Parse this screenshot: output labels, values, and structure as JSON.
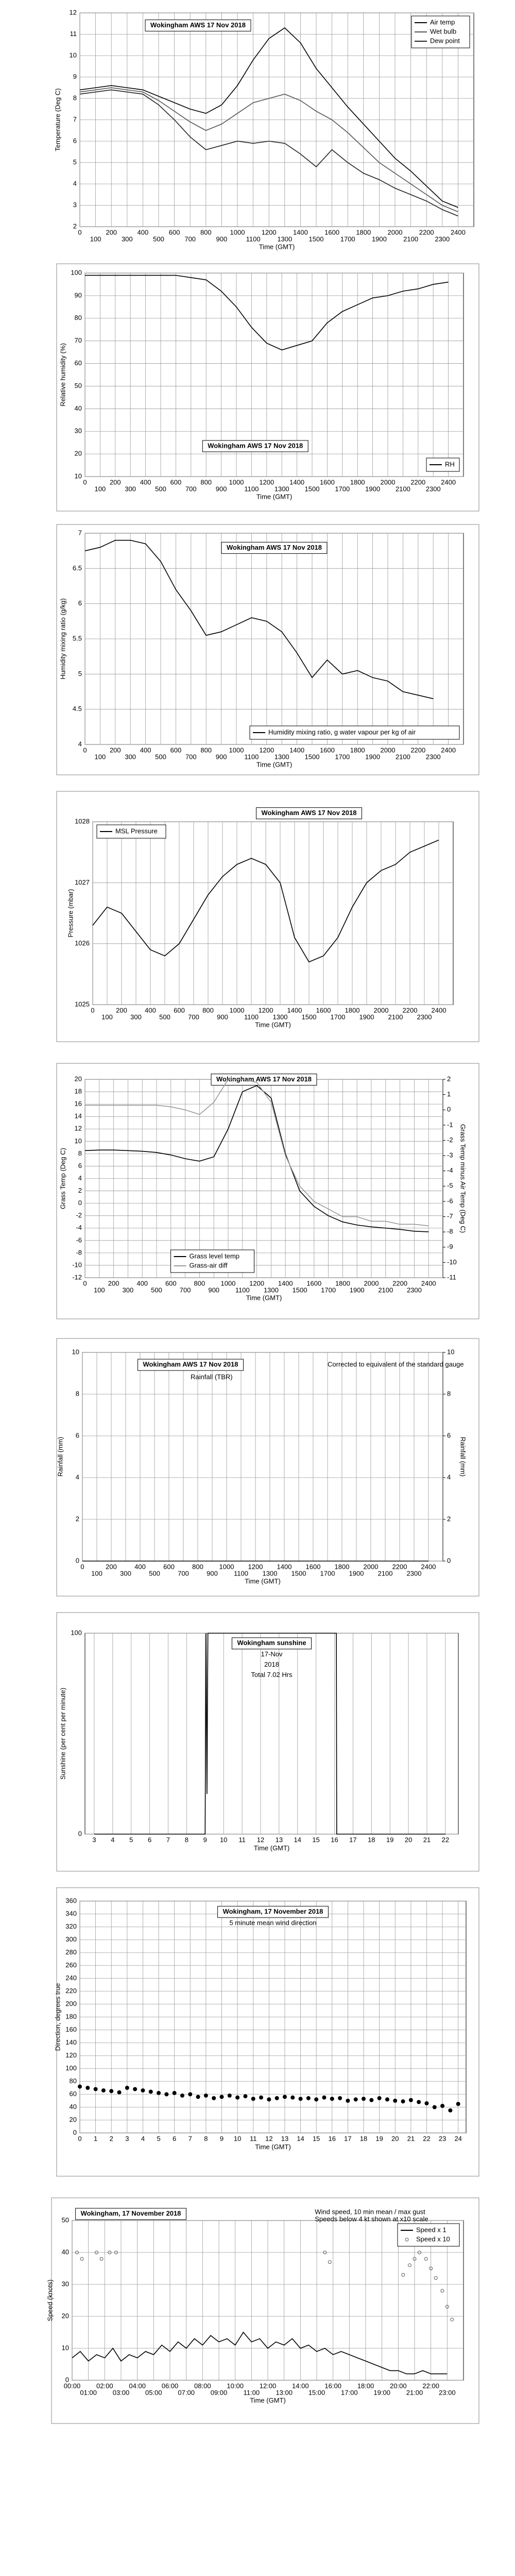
{
  "chart_data": [
    {
      "type": "line",
      "title": "Wokingham AWS 17 Nov 2018",
      "xlabel": "Time (GMT)",
      "ylabel": "Temperature (Deg C)",
      "x": [
        0,
        100,
        200,
        300,
        400,
        500,
        600,
        700,
        800,
        900,
        1000,
        1100,
        1200,
        1300,
        1400,
        1500,
        1600,
        1700,
        1800,
        1900,
        2000,
        2100,
        2200,
        2300,
        2400
      ],
      "xlim": [
        0,
        2500
      ],
      "xticks": [
        0,
        100,
        200,
        300,
        400,
        500,
        600,
        700,
        800,
        900,
        1000,
        1100,
        1200,
        1300,
        1400,
        1500,
        1600,
        1700,
        1800,
        1900,
        2000,
        2100,
        2200,
        2300,
        2400
      ],
      "ylim": [
        2,
        12
      ],
      "yticks": [
        2,
        3,
        4,
        5,
        6,
        7,
        8,
        9,
        10,
        11,
        12
      ],
      "grid": true,
      "legend": "upper right",
      "series": [
        {
          "name": "Air temp",
          "color": "#000000",
          "values": [
            8.4,
            8.5,
            8.6,
            8.5,
            8.4,
            8.1,
            7.8,
            7.5,
            7.3,
            7.7,
            8.6,
            9.8,
            10.8,
            11.3,
            10.6,
            9.4,
            8.5,
            7.6,
            6.8,
            6.0,
            5.2,
            4.6,
            3.9,
            3.2,
            2.9
          ]
        },
        {
          "name": "Wet bulb",
          "color": "#555555",
          "values": [
            8.3,
            8.4,
            8.5,
            8.4,
            8.3,
            7.9,
            7.4,
            6.9,
            6.5,
            6.8,
            7.3,
            7.8,
            8.0,
            8.2,
            7.9,
            7.4,
            7.0,
            6.4,
            5.7,
            5.0,
            4.5,
            4.0,
            3.5,
            3.0,
            2.7
          ]
        },
        {
          "name": "Dew point",
          "color": "#222222",
          "values": [
            8.2,
            8.3,
            8.4,
            8.3,
            8.2,
            7.7,
            7.0,
            6.2,
            5.6,
            5.8,
            6.0,
            5.9,
            6.0,
            5.9,
            5.4,
            4.8,
            5.6,
            5.0,
            4.5,
            4.2,
            3.8,
            3.5,
            3.2,
            2.8,
            2.5
          ]
        }
      ]
    },
    {
      "type": "line",
      "title": "Wokingham AWS 17 Nov 2018",
      "xlabel": "Time (GMT)",
      "ylabel": "Relative humidity (%)",
      "x": [
        0,
        100,
        200,
        300,
        400,
        500,
        600,
        700,
        800,
        900,
        1000,
        1100,
        1200,
        1300,
        1400,
        1500,
        1600,
        1700,
        1800,
        1900,
        2000,
        2100,
        2200,
        2300,
        2400
      ],
      "xlim": [
        0,
        2500
      ],
      "xticks": [
        0,
        100,
        200,
        300,
        400,
        500,
        600,
        700,
        800,
        900,
        1000,
        1100,
        1200,
        1300,
        1400,
        1500,
        1600,
        1700,
        1800,
        1900,
        2000,
        2100,
        2200,
        2300,
        2400
      ],
      "ylim": [
        10,
        100
      ],
      "yticks": [
        10,
        20,
        30,
        40,
        50,
        60,
        70,
        80,
        90,
        100
      ],
      "grid": true,
      "legend": "lower right",
      "series": [
        {
          "name": "RH",
          "color": "#000000",
          "values": [
            99,
            99,
            99,
            99,
            99,
            99,
            99,
            98,
            97,
            92,
            85,
            76,
            69,
            66,
            68,
            70,
            78,
            83,
            86,
            89,
            90,
            92,
            93,
            95,
            96
          ]
        }
      ]
    },
    {
      "type": "line",
      "title": "Wokingham AWS 17 Nov 2018",
      "xlabel": "Time (GMT)",
      "ylabel": "Humidity mixing ratio (g/kg)",
      "x": [
        0,
        100,
        200,
        300,
        400,
        500,
        600,
        700,
        800,
        900,
        1000,
        1100,
        1200,
        1300,
        1400,
        1500,
        1600,
        1700,
        1800,
        1900,
        2000,
        2100,
        2200,
        2300
      ],
      "xlim": [
        0,
        2500
      ],
      "xticks": [
        0,
        100,
        200,
        300,
        400,
        500,
        600,
        700,
        800,
        900,
        1000,
        1100,
        1200,
        1300,
        1400,
        1500,
        1600,
        1700,
        1800,
        1900,
        2000,
        2100,
        2200,
        2300,
        2400
      ],
      "ylim": [
        4,
        7
      ],
      "yticks": [
        4,
        4.5,
        5,
        5.5,
        6,
        6.5,
        7
      ],
      "grid": true,
      "legend": "lower right",
      "series": [
        {
          "name": "Humidity mixing ratio, g water vapour per kg of air",
          "color": "#000000",
          "values": [
            6.75,
            6.8,
            6.9,
            6.9,
            6.85,
            6.6,
            6.2,
            5.9,
            5.55,
            5.6,
            5.7,
            5.8,
            5.75,
            5.6,
            5.3,
            4.95,
            5.2,
            5.0,
            5.05,
            4.95,
            4.9,
            4.75,
            4.7,
            4.65
          ]
        }
      ]
    },
    {
      "type": "line",
      "title": "Wokingham AWS 17 Nov 2018",
      "xlabel": "Time (GMT)",
      "ylabel": "Pressure (mbar)",
      "x": [
        0,
        100,
        200,
        300,
        400,
        500,
        600,
        700,
        800,
        900,
        1000,
        1100,
        1200,
        1300,
        1400,
        1500,
        1600,
        1700,
        1800,
        1900,
        2000,
        2100,
        2200,
        2300,
        2400
      ],
      "xlim": [
        0,
        2500
      ],
      "xticks": [
        0,
        100,
        200,
        300,
        400,
        500,
        600,
        700,
        800,
        900,
        1000,
        1100,
        1200,
        1300,
        1400,
        1500,
        1600,
        1700,
        1800,
        1900,
        2000,
        2100,
        2200,
        2300,
        2400
      ],
      "ylim": [
        1025,
        1028
      ],
      "yticks": [
        1025,
        1026,
        1027,
        1028
      ],
      "grid": true,
      "legend": "upper left",
      "series": [
        {
          "name": "MSL Pressure",
          "color": "#000000",
          "values": [
            1026.3,
            1026.6,
            1026.5,
            1026.2,
            1025.9,
            1025.8,
            1026.0,
            1026.4,
            1026.8,
            1027.1,
            1027.3,
            1027.4,
            1027.3,
            1027.0,
            1026.1,
            1025.7,
            1025.8,
            1026.1,
            1026.6,
            1027.0,
            1027.2,
            1027.3,
            1027.5,
            1027.6,
            1027.7
          ]
        }
      ]
    },
    {
      "type": "line",
      "title": "Wokingham AWS 17 Nov 2018",
      "xlabel": "Time (GMT)",
      "ylabel": "Grass Temp (Deg C)",
      "y2label": "Grass Temp minus Air Temp (Deg C)",
      "x": [
        0,
        100,
        200,
        300,
        400,
        500,
        600,
        700,
        800,
        900,
        1000,
        1100,
        1200,
        1300,
        1400,
        1500,
        1600,
        1700,
        1800,
        1900,
        2000,
        2100,
        2200,
        2300,
        2400
      ],
      "xlim": [
        0,
        2500
      ],
      "xticks": [
        0,
        100,
        200,
        300,
        400,
        500,
        600,
        700,
        800,
        900,
        1000,
        1100,
        1200,
        1300,
        1400,
        1500,
        1600,
        1700,
        1800,
        1900,
        2000,
        2100,
        2200,
        2300,
        2400
      ],
      "ylim": [
        -12,
        20
      ],
      "yticks": [
        -12,
        -10,
        -8,
        -6,
        -4,
        -2,
        0,
        2,
        4,
        6,
        8,
        10,
        12,
        14,
        16,
        18,
        20
      ],
      "y2lim": [
        -11,
        2
      ],
      "y2ticks": [
        -11,
        -10,
        -9,
        -8,
        -7,
        -6,
        -5,
        -4,
        -3,
        -2,
        -1,
        0,
        1,
        2
      ],
      "grid": true,
      "legend": "lower center",
      "series": [
        {
          "name": "Grass level temp",
          "color": "#000000",
          "values": [
            8.5,
            8.6,
            8.6,
            8.5,
            8.4,
            8.2,
            7.8,
            7.2,
            6.8,
            7.5,
            12,
            18,
            19,
            17,
            8,
            2,
            -0.5,
            -2,
            -3,
            -3.5,
            -3.8,
            -4,
            -4.2,
            -4.5,
            -4.6
          ]
        },
        {
          "name": "Grass-air diff",
          "color": "#999999",
          "axis": "y2",
          "values": [
            0.3,
            0.3,
            0.3,
            0.3,
            0.3,
            0.3,
            0.2,
            0,
            -0.3,
            0.5,
            2,
            2,
            1.8,
            0.5,
            -3,
            -5,
            -6,
            -6.5,
            -7,
            -7,
            -7.3,
            -7.3,
            -7.5,
            -7.5,
            -7.6
          ]
        }
      ]
    },
    {
      "type": "line",
      "title": "Wokingham AWS 17 Nov 2018",
      "annotations": [
        "Rainfall (TBR)",
        "Corrected to equivalent of the standard gauge"
      ],
      "xlabel": "Time (GMT)",
      "ylabel": "Rainfall (mm)",
      "y2label": "Rainfall (mm)",
      "x": [
        0,
        2400
      ],
      "xlim": [
        0,
        2500
      ],
      "xticks": [
        0,
        100,
        200,
        300,
        400,
        500,
        600,
        700,
        800,
        900,
        1000,
        1100,
        1200,
        1300,
        1400,
        1500,
        1600,
        1700,
        1800,
        1900,
        2000,
        2100,
        2200,
        2300,
        2400
      ],
      "ylim": [
        0,
        10
      ],
      "yticks": [
        0,
        2,
        4,
        6,
        8,
        10
      ],
      "y2lim": [
        0,
        10
      ],
      "y2ticks": [
        0,
        2,
        4,
        6,
        8,
        10
      ],
      "grid": true,
      "series": [
        {
          "color": "#000000",
          "values": [
            0,
            0
          ]
        }
      ]
    },
    {
      "type": "line",
      "title": "Wokingham sunshine",
      "annotations": [
        "17-Nov",
        "2018",
        "Total 7.02 Hrs"
      ],
      "xlabel": "Time (GMT)",
      "ylabel": "Sunshine (per cent per minute)",
      "x": [
        3,
        9,
        9.05,
        9.1,
        9.15,
        9.2,
        16.1,
        16.12,
        22
      ],
      "xlim": [
        2.5,
        22.7
      ],
      "xticks": [
        3,
        4,
        5,
        6,
        7,
        8,
        9,
        10,
        11,
        12,
        13,
        14,
        15,
        16,
        17,
        18,
        19,
        20,
        21,
        22
      ],
      "ylim": [
        0,
        100
      ],
      "yticks": [
        0,
        100
      ],
      "grid": true,
      "series": [
        {
          "color": "#000000",
          "values": [
            0,
            0,
            100,
            20,
            100,
            100,
            100,
            0,
            0
          ]
        }
      ]
    },
    {
      "type": "scatter",
      "title": "Wokingham,  17 November 2018",
      "annotations": [
        "5 minute mean wind direction"
      ],
      "xlabel": "Time (GMT)",
      "ylabel": "Direction, degrees true",
      "x": [
        0,
        0.5,
        1,
        1.5,
        2,
        2.5,
        3,
        3.5,
        4,
        4.5,
        5,
        5.5,
        6,
        6.5,
        7,
        7.5,
        8,
        8.5,
        9,
        9.5,
        10,
        10.5,
        11,
        11.5,
        12,
        12.5,
        13,
        13.5,
        14,
        14.5,
        15,
        15.5,
        16,
        16.5,
        17,
        17.5,
        18,
        18.5,
        19,
        19.5,
        20,
        20.5,
        21,
        21.5,
        22,
        22.5,
        23,
        23.5,
        24
      ],
      "xlim": [
        0,
        24.5
      ],
      "xticks": [
        0,
        1,
        2,
        3,
        4,
        5,
        6,
        7,
        8,
        9,
        10,
        11,
        12,
        13,
        14,
        15,
        16,
        17,
        18,
        19,
        20,
        21,
        22,
        23,
        24
      ],
      "ylim": [
        0,
        360
      ],
      "yticks": [
        0,
        20,
        40,
        60,
        80,
        100,
        120,
        140,
        160,
        180,
        200,
        220,
        240,
        260,
        280,
        300,
        320,
        340,
        360
      ],
      "grid": true,
      "series": [
        {
          "color": "#000000",
          "values": [
            72,
            70,
            68,
            66,
            65,
            63,
            70,
            68,
            66,
            64,
            62,
            60,
            62,
            58,
            60,
            56,
            58,
            54,
            56,
            58,
            55,
            57,
            53,
            55,
            52,
            54,
            56,
            55,
            53,
            54,
            52,
            55,
            53,
            54,
            50,
            52,
            53,
            51,
            54,
            52,
            50,
            49,
            51,
            48,
            46,
            40,
            42,
            35,
            45
          ]
        }
      ]
    },
    {
      "type": "line",
      "title": "Wokingham,  17 November 2018",
      "annotations": [
        "Wind speed, 10 min mean / max gust",
        "Speeds below 4 kt shown at x10 scale"
      ],
      "xlabel": "Time (GMT)",
      "ylabel": "Speed (knots)",
      "x": [
        0,
        0.5,
        1,
        1.5,
        2,
        2.5,
        3,
        3.5,
        4,
        4.5,
        5,
        5.5,
        6,
        6.5,
        7,
        7.5,
        8,
        8.5,
        9,
        9.5,
        10,
        10.5,
        11,
        11.5,
        12,
        12.5,
        13,
        13.5,
        14,
        14.5,
        15,
        15.5,
        16,
        16.5,
        17,
        17.5,
        18,
        18.5,
        19,
        19.5,
        20,
        20.5,
        21,
        21.5,
        22,
        22.5,
        23
      ],
      "xlim": [
        0,
        24
      ],
      "xticks": [
        {
          "value": 0,
          "label": "00:00"
        },
        {
          "value": 1,
          "label": "01:00"
        },
        {
          "value": 2,
          "label": "02:00"
        },
        {
          "value": 3,
          "label": "03:00"
        },
        {
          "value": 4,
          "label": "04:00"
        },
        {
          "value": 5,
          "label": "05:00"
        },
        {
          "value": 6,
          "label": "06:00"
        },
        {
          "value": 7,
          "label": "07:00"
        },
        {
          "value": 8,
          "label": "08:00"
        },
        {
          "value": 9,
          "label": "09:00"
        },
        {
          "value": 10,
          "label": "10:00"
        },
        {
          "value": 11,
          "label": "11:00"
        },
        {
          "value": 12,
          "label": "12:00"
        },
        {
          "value": 13,
          "label": "13:00"
        },
        {
          "value": 14,
          "label": "14:00"
        },
        {
          "value": 15,
          "label": "15:00"
        },
        {
          "value": 16,
          "label": "16:00"
        },
        {
          "value": 17,
          "label": "17:00"
        },
        {
          "value": 18,
          "label": "18:00"
        },
        {
          "value": 19,
          "label": "19:00"
        },
        {
          "value": 20,
          "label": "20:00"
        },
        {
          "value": 21,
          "label": "21:00"
        },
        {
          "value": 22,
          "label": "22:00"
        },
        {
          "value": 23,
          "label": "23:00"
        }
      ],
      "ylim": [
        0,
        50
      ],
      "yticks": [
        0,
        10,
        20,
        30,
        40,
        50
      ],
      "grid": true,
      "legend": "upper right",
      "series": [
        {
          "name": "Speed x 1",
          "color": "#000000",
          "values": [
            7,
            9,
            6,
            8,
            7,
            10,
            6,
            8,
            7,
            9,
            8,
            11,
            9,
            12,
            10,
            13,
            11,
            14,
            12,
            13,
            11,
            15,
            12,
            13,
            10,
            12,
            11,
            13,
            10,
            11,
            9,
            10,
            8,
            9,
            8,
            7,
            6,
            5,
            4,
            3,
            3,
            2,
            2,
            3,
            2,
            2,
            2
          ]
        },
        {
          "name": "Speed x 10",
          "color": "#555555",
          "mode": "markers",
          "x": [
            0.3,
            0.6,
            1.5,
            1.8,
            2.3,
            2.7,
            15.5,
            15.8,
            20.3,
            20.7,
            21,
            21.3,
            21.7,
            22,
            22.3,
            22.7,
            23,
            23.3
          ],
          "values": [
            40,
            38,
            40,
            38,
            40,
            40,
            40,
            37,
            33,
            36,
            38,
            40,
            38,
            35,
            32,
            28,
            23,
            19
          ]
        }
      ]
    }
  ]
}
